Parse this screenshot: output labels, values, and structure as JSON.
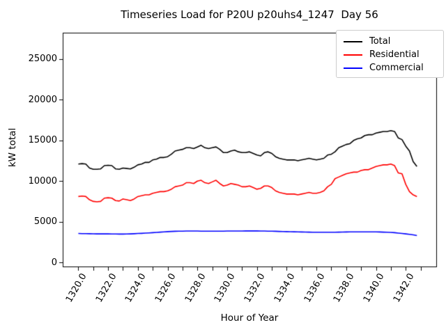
{
  "chart_data": {
    "type": "line",
    "title": "Timeseries Load for P20U p20uhs4_1247  Day 56",
    "xlabel": "Hour of Year",
    "ylabel": "kW total",
    "grid": false,
    "legend_position": "upper right",
    "legend_border_color": "#cccccc",
    "xlim": [
      1318.95,
      1344.05
    ],
    "ylim": [
      -510,
      28250
    ],
    "x_tick_labels": [
      "1320.0",
      "1322.0",
      "1324.0",
      "1326.0",
      "1328.0",
      "1330.0",
      "1332.0",
      "1334.0",
      "1336.0",
      "1338.0",
      "1340.0",
      "1342.0"
    ],
    "x_tick_values": [
      1320,
      1322,
      1324,
      1326,
      1328,
      1330,
      1332,
      1334,
      1336,
      1338,
      1340,
      1342
    ],
    "x_minor_ticks": {
      "start": 1320,
      "end": 1343,
      "step": 1
    },
    "y_tick_labels": [
      "0",
      "5000",
      "10000",
      "15000",
      "20000",
      "25000"
    ],
    "y_tick_values": [
      0,
      5000,
      10000,
      15000,
      20000,
      25000
    ],
    "x_start": 1320.0,
    "x_step": 0.25,
    "series": [
      {
        "name": "Total",
        "color": "#000000",
        "values": [
          12100,
          12150,
          12100,
          11600,
          11450,
          11450,
          11500,
          11900,
          11950,
          11900,
          11500,
          11450,
          11600,
          11550,
          11500,
          11700,
          12000,
          12100,
          12300,
          12300,
          12600,
          12700,
          12900,
          12900,
          13000,
          13300,
          13700,
          13800,
          13900,
          14100,
          14100,
          14000,
          14200,
          14400,
          14100,
          14000,
          14100,
          14200,
          13900,
          13500,
          13500,
          13700,
          13800,
          13600,
          13500,
          13500,
          13600,
          13400,
          13200,
          13100,
          13500,
          13600,
          13400,
          13000,
          12800,
          12700,
          12600,
          12600,
          12600,
          12500,
          12600,
          12700,
          12800,
          12700,
          12600,
          12700,
          12800,
          13200,
          13300,
          13600,
          14100,
          14300,
          14500,
          14600,
          15000,
          15200,
          15300,
          15600,
          15700,
          15700,
          15900,
          16000,
          16100,
          16100,
          16200,
          16100,
          15300,
          15100,
          14300,
          13700,
          12400,
          11800
        ]
      },
      {
        "name": "Residential",
        "color": "#ff0000",
        "values": [
          8100,
          8150,
          8100,
          7700,
          7500,
          7450,
          7500,
          7900,
          7950,
          7900,
          7600,
          7550,
          7800,
          7700,
          7600,
          7800,
          8100,
          8200,
          8300,
          8300,
          8500,
          8600,
          8700,
          8700,
          8800,
          9000,
          9300,
          9400,
          9500,
          9800,
          9800,
          9700,
          10000,
          10100,
          9800,
          9700,
          9900,
          10100,
          9700,
          9400,
          9500,
          9700,
          9600,
          9500,
          9300,
          9300,
          9400,
          9200,
          9000,
          9100,
          9400,
          9400,
          9200,
          8800,
          8600,
          8500,
          8400,
          8400,
          8400,
          8300,
          8400,
          8500,
          8600,
          8500,
          8500,
          8600,
          8800,
          9300,
          9600,
          10300,
          10500,
          10700,
          10900,
          11000,
          11100,
          11100,
          11300,
          11400,
          11400,
          11600,
          11800,
          11900,
          12000,
          12000,
          12100,
          11900,
          11000,
          10900,
          9600,
          8700,
          8300,
          8100
        ]
      },
      {
        "name": "Commercial",
        "color": "#0000ff",
        "values": [
          3550,
          3540,
          3530,
          3520,
          3510,
          3500,
          3500,
          3500,
          3500,
          3490,
          3490,
          3480,
          3480,
          3490,
          3500,
          3520,
          3550,
          3570,
          3600,
          3620,
          3650,
          3680,
          3720,
          3750,
          3780,
          3800,
          3820,
          3830,
          3840,
          3850,
          3850,
          3850,
          3850,
          3840,
          3830,
          3830,
          3830,
          3830,
          3830,
          3840,
          3850,
          3850,
          3860,
          3860,
          3860,
          3870,
          3870,
          3870,
          3870,
          3860,
          3850,
          3840,
          3830,
          3820,
          3800,
          3790,
          3780,
          3770,
          3760,
          3750,
          3740,
          3730,
          3720,
          3710,
          3700,
          3700,
          3700,
          3700,
          3700,
          3710,
          3720,
          3730,
          3740,
          3750,
          3750,
          3750,
          3750,
          3750,
          3750,
          3750,
          3750,
          3740,
          3720,
          3700,
          3680,
          3650,
          3600,
          3550,
          3500,
          3450,
          3380,
          3300
        ]
      }
    ]
  }
}
